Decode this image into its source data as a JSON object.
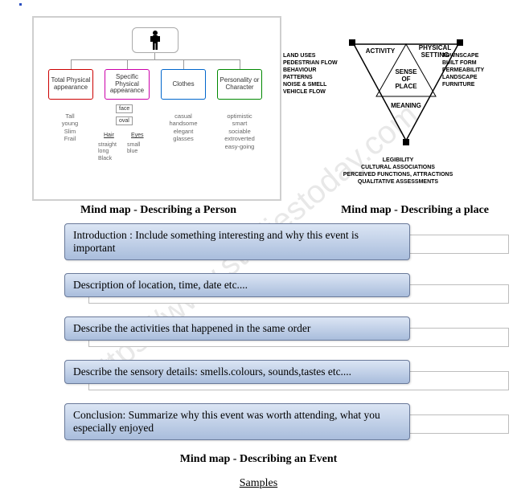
{
  "watermark": "ttps://www.studiestoday.com",
  "person": {
    "branches": {
      "b1": "Total Physical appearance",
      "b2": "Specific Physical appearance",
      "b3": "Clothes",
      "b4": "Personality or Character"
    },
    "leaves": {
      "l1": "Tall\nyoung\nSlim\nFrail",
      "l3": "casual\nhandsome\nelegant\nglasses",
      "l4": "optimistic\nsmart\nsociable\nextroverted\neasy-going"
    },
    "face": "face",
    "oval": "oval",
    "hair_label": "Hair",
    "eyes_label": "Eyes",
    "hair_vals": "straight\nlong\nBlack",
    "eyes_vals": "small\nblue"
  },
  "place": {
    "left_text": "LAND USES\nPEDESTRIAN FLOW\nBEHAVIOUR\nPATTERNS\nNOISE & SMELL\nVEHICLE FLOW",
    "right_text": "TOWNSCAPE\nBUILT FORM\nPERMEABILITY\nLANDSCAPE\nFURNITURE",
    "bottom_text": "LEGIBILITY\nCULTURAL ASSOCIATIONS\nPERCEIVED FUNCTIONS, ATTRACTIONS\nQUALITATIVE ASSESSMENTS",
    "top_left": "ACTIVITY",
    "top_right": "PHYSICAL\nSETTING",
    "center": "SENSE\nOF\nPLACE",
    "bottom": "MEANING"
  },
  "captions": {
    "c1": "Mind map - Describing a Person",
    "c2": "Mind map - Describing a place"
  },
  "events": [
    "Introduction : Include something interesting and why this event is important",
    "Description of location, time, date etc....",
    "Describe the activities that happened in the same order",
    "Describe the sensory details: smells.colours, sounds,tastes etc....",
    "Conclusion: Summarize why this event was worth attending, what you especially enjoyed"
  ],
  "footer_caption": "Mind map - Describing an Event",
  "samples": "Samples"
}
